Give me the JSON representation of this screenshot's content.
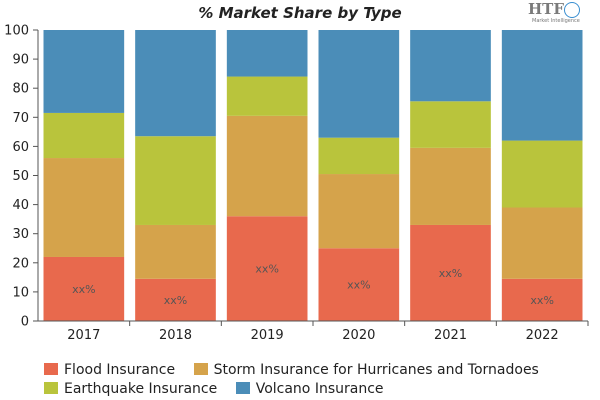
{
  "chart_data": {
    "type": "bar",
    "stacked": true,
    "title": "% Market Share by Type",
    "categories": [
      "2017",
      "2018",
      "2019",
      "2020",
      "2021",
      "2022"
    ],
    "series": [
      {
        "name": "Flood Insurance",
        "color": "#e8694d",
        "values": [
          22,
          14.5,
          36,
          25,
          33,
          14.5
        ]
      },
      {
        "name": "Storm Insurance for Hurricanes and Tornadoes",
        "color": "#d5a34b",
        "values": [
          34,
          18.5,
          34.5,
          25.5,
          26.5,
          24.5
        ]
      },
      {
        "name": "Earthquake Insurance",
        "color": "#b9c43c",
        "values": [
          15.5,
          30.5,
          13.5,
          12.5,
          16,
          23
        ]
      },
      {
        "name": "Volcano Insurance",
        "color": "#4b8db8",
        "values": [
          28.5,
          36.5,
          16,
          37,
          24.5,
          38
        ]
      }
    ],
    "data_labels": [
      "xx%",
      "xx%",
      "xx%",
      "xx%",
      "xx%",
      "xx%"
    ],
    "ylim": [
      0,
      100
    ],
    "yticks": [
      0,
      10,
      20,
      30,
      40,
      50,
      60,
      70,
      80,
      90,
      100
    ],
    "grid": false,
    "legend_position": "bottom"
  },
  "logo": {
    "text": "HTF",
    "subtext": "Market Intelligence"
  }
}
